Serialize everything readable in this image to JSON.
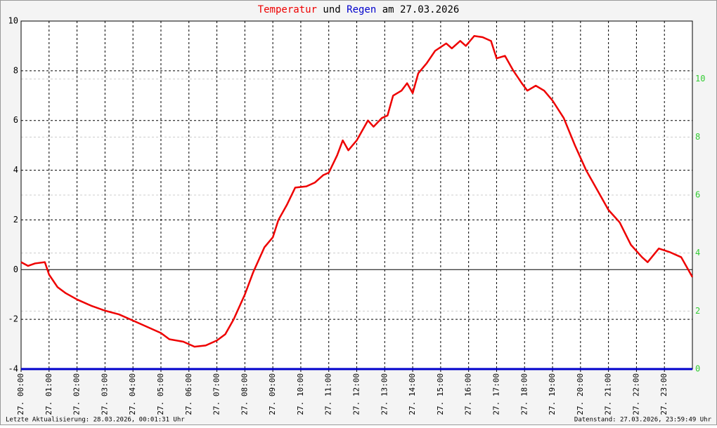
{
  "chart_data": {
    "type": "line",
    "title": [
      "Temperatur",
      "und",
      "Regen",
      "am 27.03.2026"
    ],
    "xlim": [
      0,
      24
    ],
    "xticks": [
      {
        "value": 0,
        "label": "27. 00:00"
      },
      {
        "value": 1,
        "label": "27. 01:00"
      },
      {
        "value": 2,
        "label": "27. 02:00"
      },
      {
        "value": 3,
        "label": "27. 03:00"
      },
      {
        "value": 4,
        "label": "27. 04:00"
      },
      {
        "value": 5,
        "label": "27. 05:00"
      },
      {
        "value": 6,
        "label": "27. 06:00"
      },
      {
        "value": 7,
        "label": "27. 07:00"
      },
      {
        "value": 8,
        "label": "27. 08:00"
      },
      {
        "value": 9,
        "label": "27. 09:00"
      },
      {
        "value": 10,
        "label": "27. 10:00"
      },
      {
        "value": 11,
        "label": "27. 11:00"
      },
      {
        "value": 12,
        "label": "27. 12:00"
      },
      {
        "value": 13,
        "label": "27. 13:00"
      },
      {
        "value": 14,
        "label": "27. 14:00"
      },
      {
        "value": 15,
        "label": "27. 15:00"
      },
      {
        "value": 16,
        "label": "27. 16:00"
      },
      {
        "value": 17,
        "label": "27. 17:00"
      },
      {
        "value": 18,
        "label": "27. 18:00"
      },
      {
        "value": 19,
        "label": "27. 19:00"
      },
      {
        "value": 20,
        "label": "27. 20:00"
      },
      {
        "value": 21,
        "label": "27. 21:00"
      },
      {
        "value": 22,
        "label": "27. 22:00"
      },
      {
        "value": 23,
        "label": "27. 23:00"
      }
    ],
    "ylim": [
      -4,
      10
    ],
    "yticks": [
      -4,
      -2,
      0,
      2,
      4,
      6,
      8,
      10
    ],
    "y2lim": [
      0,
      12
    ],
    "y2ticks": [
      0,
      2,
      4,
      6,
      8,
      10
    ],
    "y2_color": "#33cc33",
    "grid": true,
    "series": [
      {
        "name": "Temperatur",
        "color": "#ee0000",
        "x": [
          0,
          0.25,
          0.5,
          0.85,
          1.0,
          1.3,
          1.6,
          2.0,
          2.5,
          3.0,
          3.5,
          4.0,
          4.5,
          5.0,
          5.3,
          5.8,
          6.2,
          6.6,
          7.0,
          7.3,
          7.6,
          8.0,
          8.3,
          8.7,
          9.0,
          9.2,
          9.5,
          9.8,
          10.2,
          10.5,
          10.8,
          11.0,
          11.3,
          11.5,
          11.7,
          12.0,
          12.2,
          12.4,
          12.6,
          12.9,
          13.1,
          13.3,
          13.6,
          13.8,
          14.0,
          14.2,
          14.5,
          14.8,
          15.2,
          15.4,
          15.7,
          15.9,
          16.2,
          16.5,
          16.8,
          17.0,
          17.3,
          17.6,
          17.9,
          18.1,
          18.4,
          18.7,
          19.0,
          19.4,
          19.8,
          20.2,
          20.6,
          21.0,
          21.4,
          21.8,
          22.2,
          22.4,
          22.8,
          23.2,
          23.6,
          24.0
        ],
        "values": [
          0.3,
          0.15,
          0.25,
          0.3,
          -0.2,
          -0.7,
          -0.95,
          -1.2,
          -1.45,
          -1.65,
          -1.8,
          -2.05,
          -2.3,
          -2.55,
          -2.8,
          -2.9,
          -3.1,
          -3.05,
          -2.85,
          -2.6,
          -2.0,
          -1.0,
          -0.1,
          0.9,
          1.3,
          2.0,
          2.6,
          3.3,
          3.35,
          3.5,
          3.8,
          3.9,
          4.6,
          5.2,
          4.8,
          5.2,
          5.6,
          6.0,
          5.75,
          6.1,
          6.2,
          7.0,
          7.2,
          7.5,
          7.1,
          7.9,
          8.3,
          8.8,
          9.1,
          8.9,
          9.2,
          9.0,
          9.4,
          9.35,
          9.2,
          8.5,
          8.6,
          8.0,
          7.5,
          7.2,
          7.4,
          7.2,
          6.8,
          6.1,
          5.0,
          4.0,
          3.2,
          2.4,
          1.9,
          1.0,
          0.5,
          0.3,
          0.85,
          0.7,
          0.5,
          -0.3
        ]
      },
      {
        "name": "Regen",
        "color": "#0000cc",
        "axis": "y2",
        "x": [
          0,
          24
        ],
        "values": [
          0,
          0
        ]
      }
    ],
    "footer_left": "Letzte Aktualisierung: 28.03.2026, 00:01:31 Uhr",
    "footer_right": "Datenstand: 27.03.2026, 23:59:49 Uhr"
  }
}
